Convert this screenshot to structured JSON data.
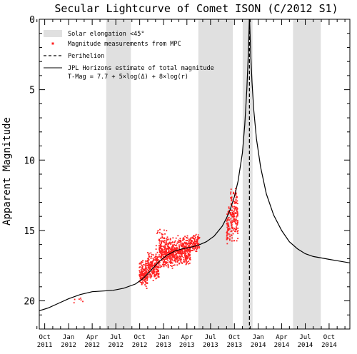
{
  "chart_data": {
    "type": "scatter",
    "title": "Secular Lightcurve of Comet ISON (C/2012 S1)",
    "ylabel": "Apparent Magnitude",
    "xlabel": "",
    "ylim": [
      0,
      22
    ],
    "y_inverted": true,
    "yticks": [
      0,
      5,
      10,
      15,
      20
    ],
    "xlim": [
      "2011-09-10",
      "2014-12-20"
    ],
    "xticks": [
      {
        "date": "2011-10-01",
        "month": "Oct",
        "year": "2011"
      },
      {
        "date": "2012-01-01",
        "month": "Jan",
        "year": "2012"
      },
      {
        "date": "2012-04-01",
        "month": "Apr",
        "year": "2012"
      },
      {
        "date": "2012-07-01",
        "month": "Jul",
        "year": "2012"
      },
      {
        "date": "2012-10-01",
        "month": "Oct",
        "year": "2012"
      },
      {
        "date": "2013-01-01",
        "month": "Jan",
        "year": "2013"
      },
      {
        "date": "2013-04-01",
        "month": "Apr",
        "year": "2013"
      },
      {
        "date": "2013-07-01",
        "month": "Jul",
        "year": "2013"
      },
      {
        "date": "2013-10-01",
        "month": "Oct",
        "year": "2013"
      },
      {
        "date": "2014-01-01",
        "month": "Jan",
        "year": "2014"
      },
      {
        "date": "2014-04-01",
        "month": "Apr",
        "year": "2014"
      },
      {
        "date": "2014-07-01",
        "month": "Jul",
        "year": "2014"
      },
      {
        "date": "2014-10-01",
        "month": "Oct",
        "year": "2014"
      }
    ],
    "legend_position": "top-left",
    "legend": {
      "elongation": "Solar elongation <45°",
      "measurements": "Magnitude measurements from MPC",
      "perihelion": "Perihelion",
      "model_line1": "JPL Horizons estimate of total magnitude",
      "model_line2": "T-Mag = 7.7  + 5×log(Δ) + 8×log(r)"
    },
    "elongation_bands": [
      [
        "2012-05-25",
        "2012-08-28"
      ],
      [
        "2013-05-15",
        "2013-09-25"
      ],
      [
        "2013-11-02",
        "2013-12-10"
      ],
      [
        "2014-05-15",
        "2014-08-30"
      ]
    ],
    "perihelion": "2013-11-28",
    "model_curve": [
      [
        "2011-09-10",
        20.7
      ],
      [
        "2011-10-15",
        20.5
      ],
      [
        "2011-11-20",
        20.2
      ],
      [
        "2012-01-01",
        19.85
      ],
      [
        "2012-02-15",
        19.55
      ],
      [
        "2012-04-01",
        19.35
      ],
      [
        "2012-05-15",
        19.3
      ],
      [
        "2012-06-20",
        19.25
      ],
      [
        "2012-08-01",
        19.1
      ],
      [
        "2012-09-15",
        18.8
      ],
      [
        "2012-10-15",
        18.4
      ],
      [
        "2012-11-15",
        17.8
      ],
      [
        "2012-12-15",
        17.2
      ],
      [
        "2013-01-15",
        16.75
      ],
      [
        "2013-02-15",
        16.45
      ],
      [
        "2013-03-15",
        16.3
      ],
      [
        "2013-04-15",
        16.2
      ],
      [
        "2013-05-15",
        16.05
      ],
      [
        "2013-06-15",
        15.8
      ],
      [
        "2013-07-15",
        15.4
      ],
      [
        "2013-08-15",
        14.7
      ],
      [
        "2013-09-01",
        14.1
      ],
      [
        "2013-09-15",
        13.5
      ],
      [
        "2013-10-01",
        12.6
      ],
      [
        "2013-10-15",
        11.5
      ],
      [
        "2013-11-01",
        9.5
      ],
      [
        "2013-11-10",
        7.5
      ],
      [
        "2013-11-18",
        5.0
      ],
      [
        "2013-11-23",
        2.8
      ],
      [
        "2013-11-26",
        1.0
      ],
      [
        "2013-11-28",
        -0.3
      ],
      [
        "2013-11-30",
        0.8
      ],
      [
        "2013-12-03",
        2.5
      ],
      [
        "2013-12-08",
        4.5
      ],
      [
        "2013-12-15",
        6.5
      ],
      [
        "2013-12-25",
        8.5
      ],
      [
        "2014-01-10",
        10.5
      ],
      [
        "2014-02-01",
        12.4
      ],
      [
        "2014-03-01",
        13.9
      ],
      [
        "2014-04-01",
        15.0
      ],
      [
        "2014-05-01",
        15.8
      ],
      [
        "2014-06-01",
        16.3
      ],
      [
        "2014-07-01",
        16.65
      ],
      [
        "2014-08-01",
        16.85
      ],
      [
        "2014-09-01",
        16.95
      ],
      [
        "2014-10-01",
        17.05
      ],
      [
        "2014-11-01",
        17.15
      ],
      [
        "2014-12-20",
        17.3
      ]
    ],
    "measurement_clusters": [
      {
        "start": "2012-01-15",
        "end": "2012-02-25",
        "mag_min": 19.5,
        "mag_max": 20.3,
        "count": 6
      },
      {
        "start": "2012-09-30",
        "end": "2012-10-31",
        "mag_min": 17.0,
        "mag_max": 19.2,
        "count": 160
      },
      {
        "start": "2012-11-01",
        "end": "2012-12-15",
        "mag_min": 16.5,
        "mag_max": 18.6,
        "count": 200
      },
      {
        "start": "2012-12-15",
        "end": "2013-02-15",
        "mag_min": 15.4,
        "mag_max": 17.8,
        "count": 300
      },
      {
        "start": "2013-02-15",
        "end": "2013-04-15",
        "mag_min": 15.3,
        "mag_max": 17.5,
        "count": 280
      },
      {
        "start": "2013-04-15",
        "end": "2013-05-20",
        "mag_min": 15.2,
        "mag_max": 16.6,
        "count": 100
      },
      {
        "start": "2013-09-01",
        "end": "2013-09-15",
        "mag_min": 13.0,
        "mag_max": 16.2,
        "count": 55
      },
      {
        "start": "2013-09-15",
        "end": "2013-10-15",
        "mag_min": 11.8,
        "mag_max": 16.0,
        "count": 150
      },
      {
        "start": "2012-12-01",
        "end": "2013-01-15",
        "mag_min": 14.5,
        "mag_max": 16.8,
        "count": 25
      }
    ],
    "colors": {
      "measurement": "#ff2020",
      "band": "#e0e0e0",
      "model": "#000000",
      "perihelion": "#000000"
    }
  }
}
